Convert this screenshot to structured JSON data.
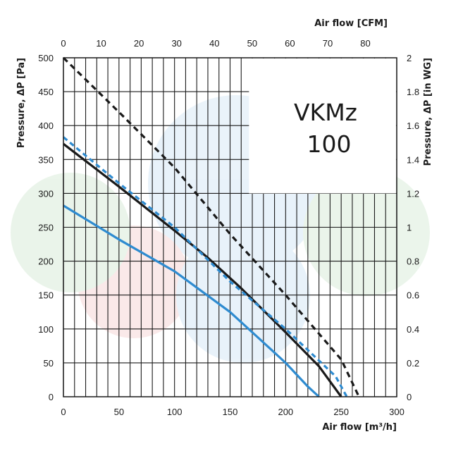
{
  "chart_data": {
    "type": "line",
    "model_label": [
      "VKMz",
      "100"
    ],
    "x_bottom": {
      "label": "Air flow [m³/h]",
      "range": [
        0,
        300
      ],
      "ticks": [
        0,
        50,
        100,
        150,
        200,
        250,
        300
      ]
    },
    "x_top": {
      "label": "Air flow [CFM]",
      "range": [
        0,
        88.3
      ],
      "ticks": [
        0,
        10,
        20,
        30,
        40,
        50,
        60,
        70,
        80
      ]
    },
    "y_left": {
      "label": "Pressure, ΔP [Pa]",
      "range": [
        0,
        500
      ],
      "ticks": [
        0,
        50,
        100,
        150,
        200,
        250,
        300,
        350,
        400,
        450,
        500
      ]
    },
    "y_right": {
      "label": "Pressure, ΔP [in WG]",
      "range": [
        0,
        2
      ],
      "ticks": [
        "0",
        "0.2",
        "0.4",
        "0.6",
        "0.8",
        "1",
        "1.2",
        "1.4",
        "1.6",
        "1.8",
        "2"
      ]
    },
    "grid": true,
    "series": [
      {
        "color": "#1a1a1a",
        "dash": "8,6",
        "x": [
          0,
          50,
          100,
          150,
          200,
          250,
          266
        ],
        "y": [
          500,
          420,
          338,
          240,
          150,
          55,
          0
        ]
      },
      {
        "color": "#1a1a1a",
        "dash": "",
        "x": [
          0,
          50,
          100,
          130,
          160,
          200,
          230,
          250
        ],
        "y": [
          373,
          310,
          245,
          205,
          160,
          95,
          45,
          0
        ]
      },
      {
        "color": "#2e8bd0",
        "dash": "7,5",
        "x": [
          0,
          50,
          100,
          150,
          200,
          245,
          255
        ],
        "y": [
          383,
          315,
          250,
          170,
          100,
          30,
          0
        ]
      },
      {
        "color": "#2e8bd0",
        "dash": "",
        "x": [
          0,
          50,
          100,
          150,
          180,
          200,
          220,
          230
        ],
        "y": [
          282,
          232,
          185,
          125,
          80,
          50,
          15,
          0
        ]
      }
    ]
  }
}
